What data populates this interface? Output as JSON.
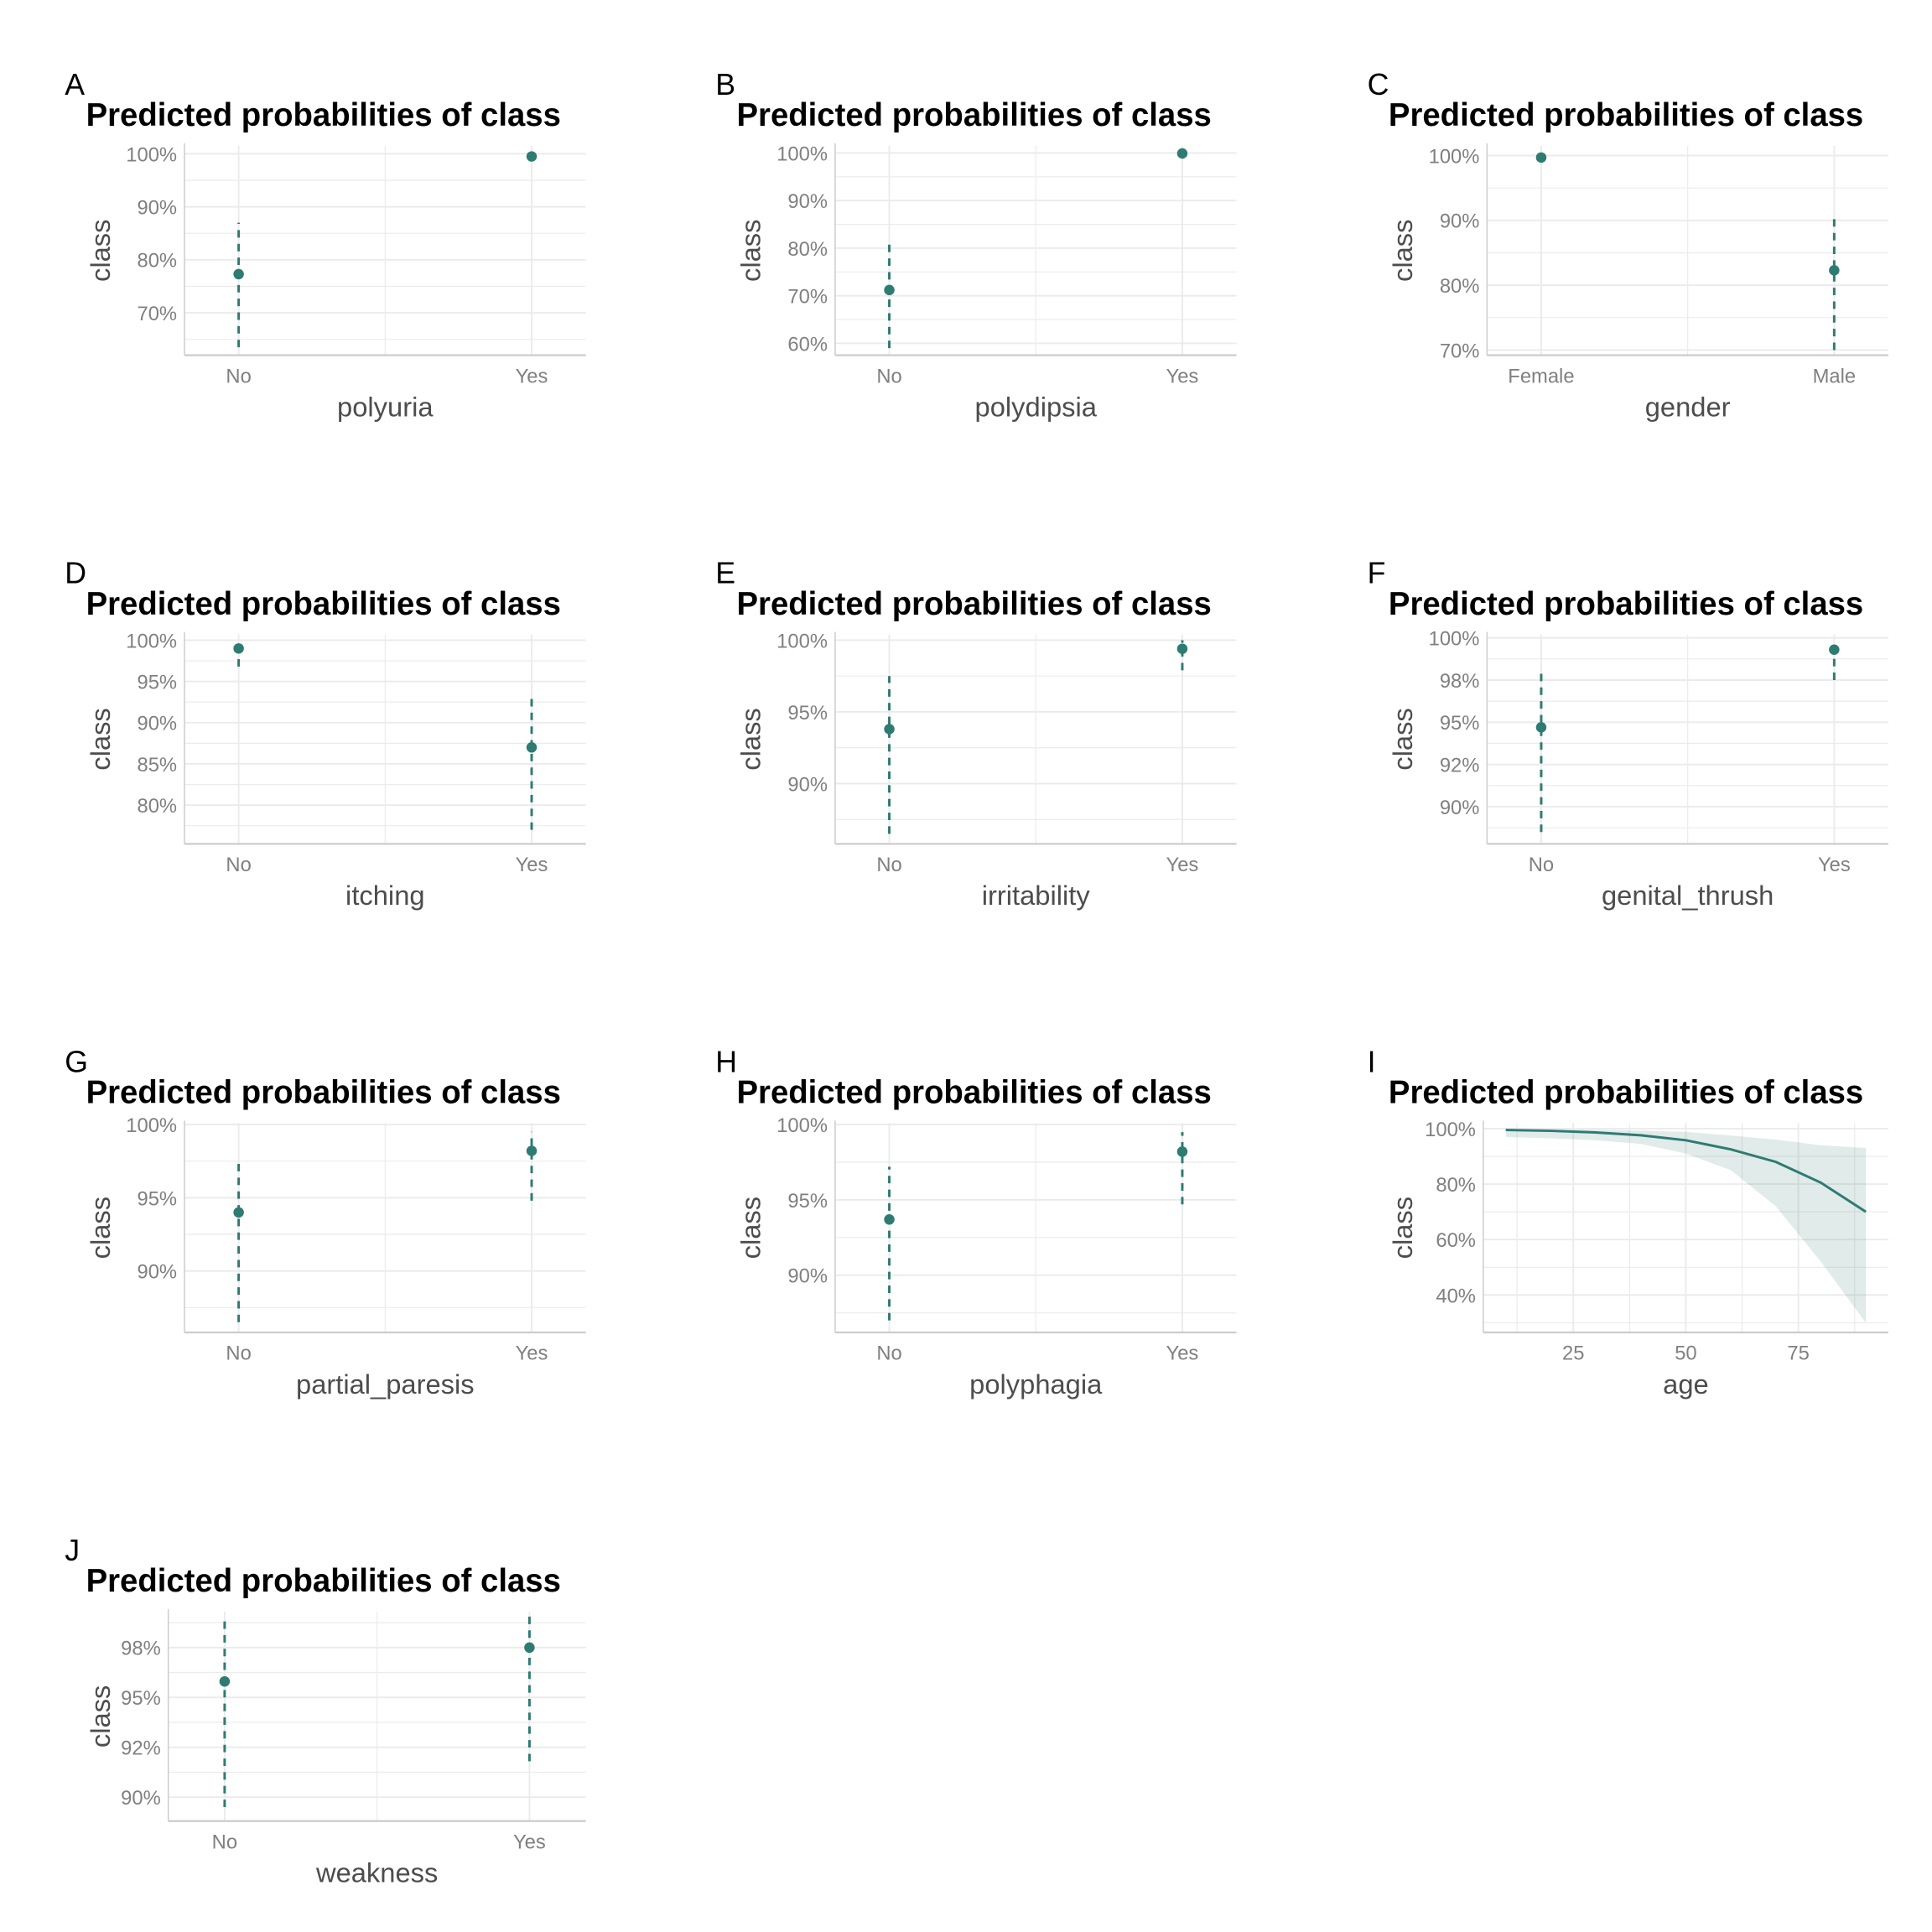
{
  "colors": {
    "accent": "#2e7b72",
    "band": "#2e7b72",
    "grid": "#ebebeb",
    "axis": "#cccccc"
  },
  "chart_data": [
    {
      "tag": "A",
      "type": "scatter",
      "title": "Predicted probabilities of class",
      "xlabel": "polyuria",
      "ylabel": "class",
      "categories": [
        "No",
        "Yes"
      ],
      "values": [
        77.3,
        99.5
      ],
      "ci_low": [
        63.5,
        99.0
      ],
      "ci_high": [
        87.0,
        100.0
      ],
      "ylim": [
        62,
        101.5
      ],
      "yticks": [
        70,
        80,
        90,
        100
      ],
      "ytick_labels": [
        "70%",
        "80%",
        "90%",
        "100%"
      ]
    },
    {
      "tag": "B",
      "type": "scatter",
      "title": "Predicted probabilities of class",
      "xlabel": "polydipsia",
      "ylabel": "class",
      "categories": [
        "No",
        "Yes"
      ],
      "values": [
        71.2,
        99.9
      ],
      "ci_low": [
        59.0,
        99.6
      ],
      "ci_high": [
        81.5,
        100.0
      ],
      "ylim": [
        57.5,
        101.5
      ],
      "yticks": [
        60,
        70,
        80,
        90,
        100
      ],
      "ytick_labels": [
        "60%",
        "70%",
        "80%",
        "90%",
        "100%"
      ]
    },
    {
      "tag": "C",
      "type": "scatter",
      "title": "Predicted probabilities of class",
      "xlabel": "gender",
      "ylabel": "class",
      "categories": [
        "Female",
        "Male"
      ],
      "values": [
        99.7,
        82.3
      ],
      "ci_low": [
        99.4,
        70.0
      ],
      "ci_high": [
        100.0,
        90.5
      ],
      "ylim": [
        69.2,
        101.5
      ],
      "yticks": [
        70,
        80,
        90,
        100
      ],
      "ytick_labels": [
        "70%",
        "80%",
        "90%",
        "100%"
      ]
    },
    {
      "tag": "D",
      "type": "scatter",
      "title": "Predicted probabilities of class",
      "xlabel": "itching",
      "ylabel": "class",
      "categories": [
        "No",
        "Yes"
      ],
      "values": [
        99.0,
        87.0
      ],
      "ci_low": [
        96.8,
        77.0
      ],
      "ci_high": [
        100.0,
        93.5
      ],
      "ylim": [
        75.3,
        100.7
      ],
      "yticks": [
        80,
        85,
        90,
        95,
        100
      ],
      "ytick_labels": [
        "80%",
        "85%",
        "90%",
        "95%",
        "100%"
      ]
    },
    {
      "tag": "E",
      "type": "scatter",
      "title": "Predicted probabilities of class",
      "xlabel": "irritability",
      "ylabel": "class",
      "categories": [
        "No",
        "Yes"
      ],
      "values": [
        93.8,
        99.4
      ],
      "ci_low": [
        86.5,
        97.9
      ],
      "ci_high": [
        97.5,
        100.0
      ],
      "ylim": [
        85.8,
        100.4
      ],
      "yticks": [
        90,
        95,
        100
      ],
      "ytick_labels": [
        "90%",
        "95%",
        "100%"
      ]
    },
    {
      "tag": "F",
      "type": "scatter",
      "title": "Predicted probabilities of class",
      "xlabel": "genital_thrush",
      "ylabel": "class",
      "categories": [
        "No",
        "Yes"
      ],
      "values": [
        94.7,
        99.3
      ],
      "ci_low": [
        88.5,
        97.5
      ],
      "ci_high": [
        98.2,
        99.9
      ],
      "ylim": [
        87.8,
        100.2
      ],
      "yticks": [
        90,
        92.5,
        95,
        97.5,
        100
      ],
      "ytick_labels": [
        "90%",
        "92%",
        "95%",
        "98%",
        "100%"
      ]
    },
    {
      "tag": "G",
      "type": "scatter",
      "title": "Predicted probabilities of class",
      "xlabel": "partial_paresis",
      "ylabel": "class",
      "categories": [
        "No",
        "Yes"
      ],
      "values": [
        94.0,
        98.2
      ],
      "ci_low": [
        86.5,
        94.8
      ],
      "ci_high": [
        97.6,
        99.5
      ],
      "ylim": [
        85.8,
        100.1
      ],
      "yticks": [
        90,
        95,
        100
      ],
      "ytick_labels": [
        "90%",
        "95%",
        "100%"
      ]
    },
    {
      "tag": "H",
      "type": "scatter",
      "title": "Predicted probabilities of class",
      "xlabel": "polyphagia",
      "ylabel": "class",
      "categories": [
        "No",
        "Yes"
      ],
      "values": [
        93.7,
        98.2
      ],
      "ci_low": [
        87.0,
        94.7
      ],
      "ci_high": [
        97.2,
        99.5
      ],
      "ylim": [
        86.2,
        100.1
      ],
      "yticks": [
        90,
        95,
        100
      ],
      "ytick_labels": [
        "90%",
        "95%",
        "100%"
      ]
    },
    {
      "tag": "I",
      "type": "line",
      "title": "Predicted probabilities of class",
      "xlabel": "age",
      "ylabel": "class",
      "x": [
        10,
        20,
        30,
        40,
        50,
        60,
        70,
        80,
        90
      ],
      "values": [
        99.5,
        99.2,
        98.6,
        97.6,
        95.8,
        92.5,
        88.0,
        80.5,
        70.0
      ],
      "ci_low": [
        97.0,
        96.5,
        95.8,
        94.5,
        91.0,
        85.0,
        72.0,
        52.0,
        30.0
      ],
      "ci_high": [
        99.9,
        99.8,
        99.6,
        99.3,
        98.8,
        97.5,
        96.0,
        94.0,
        93.0
      ],
      "xlim": [
        5,
        95
      ],
      "xticks": [
        25,
        50,
        75
      ],
      "xtick_labels": [
        "25",
        "50",
        "75"
      ],
      "ylim": [
        26.5,
        102
      ],
      "yticks": [
        40,
        60,
        80,
        100
      ],
      "ytick_labels": [
        "40%",
        "60%",
        "80%",
        "100%"
      ]
    },
    {
      "tag": "J",
      "type": "scatter",
      "title": "Predicted probabilities of class",
      "xlabel": "weakness",
      "ylabel": "class",
      "categories": [
        "No",
        "Yes"
      ],
      "values": [
        95.8,
        97.5
      ],
      "ci_low": [
        89.5,
        91.8
      ],
      "ci_high": [
        99.0,
        99.1
      ],
      "ylim": [
        88.8,
        99.3
      ],
      "yticks": [
        90,
        92.5,
        95,
        97.5
      ],
      "ytick_labels": [
        "90%",
        "92%",
        "95%",
        "98%"
      ]
    }
  ]
}
